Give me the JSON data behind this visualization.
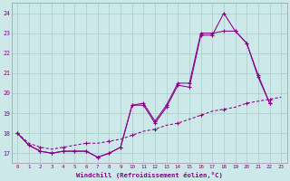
{
  "xlabel": "Windchill (Refroidissement éolien,°C)",
  "x": [
    0,
    1,
    2,
    3,
    4,
    5,
    6,
    7,
    8,
    9,
    10,
    11,
    12,
    13,
    14,
    15,
    16,
    17,
    18,
    19,
    20,
    21,
    22,
    23
  ],
  "s1": [
    18.0,
    17.4,
    17.1,
    17.0,
    17.1,
    17.1,
    17.1,
    16.8,
    17.0,
    17.3,
    19.4,
    19.4,
    18.5,
    19.3,
    20.4,
    20.3,
    22.9,
    22.9,
    24.0,
    23.1,
    22.5,
    20.9,
    19.5,
    null
  ],
  "s2": [
    18.0,
    17.4,
    17.1,
    17.0,
    17.1,
    17.1,
    17.1,
    16.8,
    17.0,
    17.3,
    19.4,
    19.5,
    18.6,
    19.4,
    20.5,
    20.5,
    23.0,
    23.0,
    23.1,
    23.1,
    22.5,
    20.8,
    19.5,
    null
  ],
  "s3": [
    18.0,
    17.5,
    17.3,
    17.2,
    17.3,
    17.4,
    17.5,
    17.5,
    17.6,
    17.7,
    17.9,
    18.1,
    18.2,
    18.4,
    18.5,
    18.7,
    18.9,
    19.1,
    19.2,
    19.3,
    19.5,
    19.6,
    19.7,
    19.8
  ],
  "bg_color": "#cce8e8",
  "grid_color": "#aacccc",
  "line_color": "#880088",
  "ylim": [
    16.5,
    24.5
  ],
  "xlim": [
    -0.5,
    23.5
  ],
  "yticks": [
    17,
    18,
    19,
    20,
    21,
    22,
    23,
    24
  ],
  "xticks": [
    0,
    1,
    2,
    3,
    4,
    5,
    6,
    7,
    8,
    9,
    10,
    11,
    12,
    13,
    14,
    15,
    16,
    17,
    18,
    19,
    20,
    21,
    22,
    23
  ]
}
